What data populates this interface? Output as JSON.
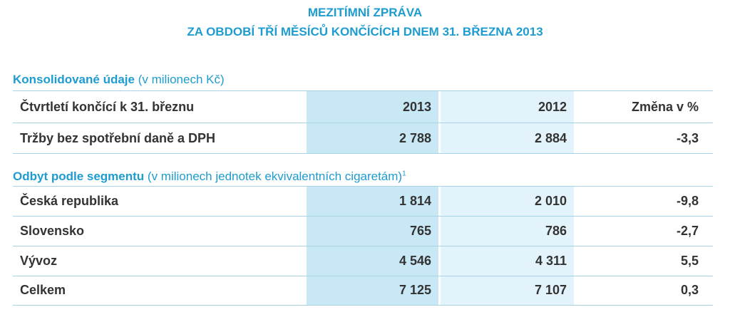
{
  "header": {
    "title": [
      "MEZITÍMNÍ ZPRÁVA",
      "ZA OBDOBÍ TŘÍ MĚSÍCŮ KONČÍCÍCH DNEM 31. BŘEZNA 2013"
    ]
  },
  "sections": [
    {
      "title": "Konsolidované údaje",
      "subtitle": "(v milionech Kč)",
      "header": [
        "Čtvrtletí končící k 31. březnu",
        "2013",
        "2012",
        "Změna v %"
      ],
      "rows": [
        [
          "Tržby bez spotřební daně a DPH",
          "2 788",
          "2 884",
          "-3,3"
        ]
      ]
    },
    {
      "title": "Odbyt podle segmentu",
      "subtitle": "(v milionech jednotek ekvivalentních cigaretám)",
      "footnote": "1",
      "rows": [
        [
          "Česká republika",
          "1 814",
          "2 010",
          "-9,8"
        ],
        [
          "Slovensko",
          "765",
          "786",
          "-2,7"
        ],
        [
          "Vývoz",
          "4 546",
          "4 311",
          "5,5"
        ],
        [
          "Celkem",
          "7 125",
          "7 107",
          "0,3"
        ]
      ]
    }
  ]
}
